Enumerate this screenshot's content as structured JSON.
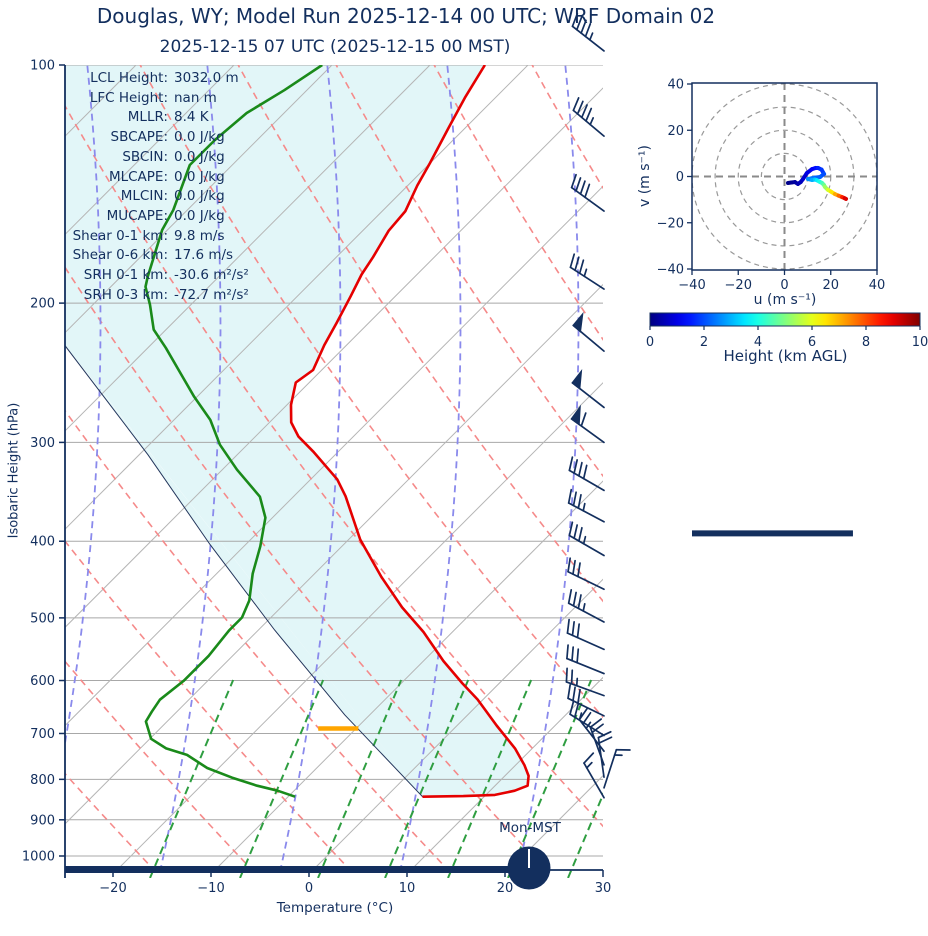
{
  "title": "Douglas, WY; Model Run 2025-12-14 00 UTC; WRF Domain 02",
  "subtitle": "2025-12-15 07 UTC  (2025-12-15 00 MST)",
  "clock": {
    "label": "Mon-MST"
  },
  "colors": {
    "navy": "#132f5e",
    "temperature": "#e50000",
    "dewpoint": "#1a8a1a",
    "parcel": "#24365c",
    "fill": "#e2f6f8",
    "dry_adiabat": "#f58a8a",
    "moist_adiabat": "#8a8aec",
    "mixing_ratio": "#2f9e41",
    "isotherm": "#b5b5b5",
    "pressure_grid": "#a8a8a8",
    "lcl_marker": "#ffa500",
    "hodo_grid": "#999999"
  },
  "stats": [
    {
      "label": "LCL Height:",
      "value": "3032.0 m"
    },
    {
      "label": "LFC Height:",
      "value": "nan m"
    },
    {
      "label": "MLLR:",
      "value": "8.4 K"
    },
    {
      "label": "SBCAPE:",
      "value": "0.0 J/kg"
    },
    {
      "label": "SBCIN:",
      "value": "0.0 J/kg"
    },
    {
      "label": "MLCAPE:",
      "value": "0.0 J/kg"
    },
    {
      "label": "MLCIN:",
      "value": "0.0 J/kg"
    },
    {
      "label": "MUCAPE:",
      "value": "0.0 J/kg"
    },
    {
      "label": "Shear 0-1 km:",
      "value": "9.8 m/s"
    },
    {
      "label": "Shear 0-6 km:",
      "value": "17.6 m/s"
    },
    {
      "label": "SRH 0-1 km:",
      "value": "-30.6 m²/s²"
    },
    {
      "label": "SRH 0-3 km:",
      "value": "-72.7 m²/s²"
    }
  ],
  "chart_data": {
    "type": "skewt-logp with hodograph",
    "skewt": {
      "xlabel": "Temperature (°C)",
      "ylabel": "Isobaric Height (hPa)",
      "temp_ticks": [
        -20,
        -10,
        0,
        10,
        20,
        30
      ],
      "pressure_ticks": [
        100,
        200,
        300,
        400,
        500,
        600,
        700,
        800,
        900,
        1000
      ],
      "pressure_range": [
        100,
        1050
      ],
      "temperature_profile": [
        [
          100,
          -64.4
        ],
        [
          110,
          -63.1
        ],
        [
          120,
          -61.7
        ],
        [
          133,
          -60.0
        ],
        [
          142,
          -59.0
        ],
        [
          153,
          -57.6
        ],
        [
          162,
          -57.3
        ],
        [
          175,
          -56.2
        ],
        [
          184,
          -55.6
        ],
        [
          196,
          -54.5
        ],
        [
          212,
          -53.2
        ],
        [
          226,
          -52.2
        ],
        [
          243,
          -50.8
        ],
        [
          252,
          -51.3
        ],
        [
          269,
          -49.5
        ],
        [
          283,
          -47.7
        ],
        [
          295,
          -45.5
        ],
        [
          308,
          -42.5
        ],
        [
          334,
          -37.2
        ],
        [
          351,
          -34.6
        ],
        [
          398,
          -28.7
        ],
        [
          444,
          -22.7
        ],
        [
          485,
          -17.5
        ],
        [
          521,
          -12.8
        ],
        [
          567,
          -7.8
        ],
        [
          605,
          -3.6
        ],
        [
          634,
          -0.4
        ],
        [
          684,
          4.2
        ],
        [
          731,
          8.4
        ],
        [
          768,
          11.1
        ],
        [
          792,
          12.6
        ],
        [
          815,
          13.5
        ],
        [
          827,
          12.7
        ],
        [
          837,
          11.1
        ],
        [
          840,
          8.0
        ],
        [
          841.5,
          3.9
        ]
      ],
      "dewpoint_profile": [
        [
          100,
          -81.0
        ],
        [
          107.6,
          -82.3
        ],
        [
          115,
          -83.8
        ],
        [
          124.4,
          -84.3
        ],
        [
          133.8,
          -84.3
        ],
        [
          152.5,
          -81.4
        ],
        [
          161.6,
          -80.5
        ],
        [
          185.2,
          -77.2
        ],
        [
          190.7,
          -76.4
        ],
        [
          201,
          -74.1
        ],
        [
          216,
          -71.2
        ],
        [
          227.8,
          -68.1
        ],
        [
          248,
          -63.4
        ],
        [
          262.7,
          -60.2
        ],
        [
          281,
          -56.2
        ],
        [
          302,
          -52.7
        ],
        [
          324.8,
          -48.4
        ],
        [
          351.4,
          -43.3
        ],
        [
          373.5,
          -40.6
        ],
        [
          406,
          -38.2
        ],
        [
          439.5,
          -36.2
        ],
        [
          475.3,
          -33.8
        ],
        [
          499.5,
          -32.8
        ],
        [
          518.6,
          -32.8
        ],
        [
          558.5,
          -32.3
        ],
        [
          600.6,
          -32.3
        ],
        [
          634.4,
          -32.8
        ],
        [
          657,
          -32.4
        ],
        [
          676,
          -32.0
        ],
        [
          711,
          -29.7
        ],
        [
          731,
          -27.2
        ],
        [
          745,
          -24.4
        ],
        [
          774,
          -21.0
        ],
        [
          796,
          -17.5
        ],
        [
          815,
          -14.1
        ],
        [
          827,
          -11.5
        ],
        [
          841.5,
          -9.1
        ]
      ],
      "parcel_path": [
        [
          841.5,
          3.9
        ],
        [
          663,
          -12.4
        ],
        [
          518,
          -28.2
        ],
        [
          404,
          -43.5
        ],
        [
          311,
          -59.0
        ],
        [
          254,
          -71.5
        ],
        [
          226,
          -78.7
        ]
      ],
      "lcl_marker": {
        "pressure": 690,
        "t_from": -13.7,
        "t_to": -9.6
      },
      "wind_barbs": [
        [
          96,
          38,
          0,
          4,
          1
        ],
        [
          123,
          40,
          0,
          4,
          1
        ],
        [
          153,
          36,
          0,
          4,
          0
        ],
        [
          192,
          33,
          0,
          3,
          1
        ],
        [
          230,
          40,
          1,
          0,
          0
        ],
        [
          271,
          38,
          1,
          0,
          0
        ],
        [
          300,
          36,
          1,
          1,
          0
        ],
        [
          345,
          30,
          0,
          4,
          0
        ],
        [
          378,
          28,
          0,
          3,
          1
        ],
        [
          417,
          30,
          0,
          3,
          1
        ],
        [
          460,
          26,
          0,
          3,
          0
        ],
        [
          506,
          28,
          0,
          3,
          1
        ],
        [
          548,
          24,
          0,
          3,
          0
        ],
        [
          588,
          22,
          0,
          3,
          0
        ],
        [
          627,
          20,
          0,
          2,
          1
        ],
        [
          665,
          26,
          0,
          3,
          0
        ],
        [
          704,
          32,
          0,
          2,
          1
        ],
        [
          737,
          52,
          0,
          2,
          1
        ],
        [
          767,
          70,
          0,
          2,
          0
        ],
        [
          795,
          82,
          0,
          2,
          0
        ],
        [
          820,
          108,
          0,
          1,
          1
        ],
        [
          844,
          60,
          0,
          1,
          1
        ]
      ],
      "barb_columns": "[pressure_hPa, staff_angle_deg_above_left_horizontal, flags, full_barbs, half_barbs]"
    },
    "hodograph": {
      "xlabel": "u (m s⁻¹)",
      "ylabel": "v (m s⁻¹)",
      "u_ticks": [
        -40,
        -20,
        0,
        20,
        40
      ],
      "v_ticks": [
        -40,
        -20,
        0,
        20,
        40
      ],
      "range": [
        -40,
        40
      ],
      "ring_radii": [
        10,
        20,
        30,
        40
      ],
      "ground_bar": {
        "v": -39,
        "u_from": -40,
        "u_to": 29.6
      },
      "trace_uvh": [
        [
          1.5,
          -2.8,
          0.05
        ],
        [
          3,
          -2.6,
          0.15
        ],
        [
          4.5,
          -2.4,
          0.25
        ],
        [
          5.8,
          -3.2,
          0.4
        ],
        [
          7,
          -2.4,
          0.55
        ],
        [
          8,
          -1.1,
          0.7
        ],
        [
          9.7,
          1.5,
          0.9
        ],
        [
          11.9,
          3.2,
          1.1
        ],
        [
          13.5,
          3.7,
          1.3
        ],
        [
          14.5,
          3.7,
          1.5
        ],
        [
          16,
          3,
          1.7
        ],
        [
          17.1,
          1.1,
          1.9
        ],
        [
          15.4,
          -0.2,
          2.1
        ],
        [
          12.3,
          -0.6,
          2.3
        ],
        [
          10.2,
          -1.1,
          2.5
        ],
        [
          11.9,
          -1.5,
          2.8
        ],
        [
          13.2,
          -1.3,
          3.1
        ],
        [
          14,
          -1.6,
          3.4
        ],
        [
          15,
          -2.2,
          3.8
        ],
        [
          16.2,
          -2.8,
          4.2
        ],
        [
          17,
          -3.6,
          4.6
        ],
        [
          17.5,
          -4.5,
          5.0
        ],
        [
          18.8,
          -5.8,
          5.6
        ],
        [
          20.2,
          -6.6,
          6.2
        ],
        [
          21.8,
          -7.6,
          6.8
        ],
        [
          23.4,
          -8.3,
          7.4
        ],
        [
          24.9,
          -8.9,
          8.1
        ],
        [
          26,
          -9.4,
          8.8
        ],
        [
          26.6,
          -9.7,
          9.4
        ]
      ],
      "trace_columns": "[u_ms, v_ms, height_km_agl]"
    },
    "colorbar": {
      "label": "Height (km AGL)",
      "ticks": [
        0,
        2,
        4,
        6,
        8,
        10
      ],
      "range": [
        0,
        10
      ],
      "cmap": "jet"
    }
  }
}
